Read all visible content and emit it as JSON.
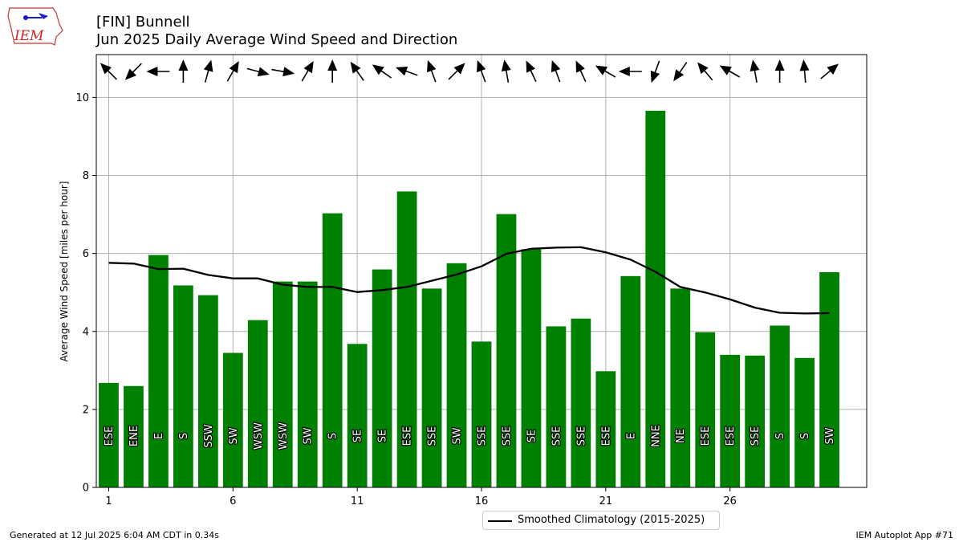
{
  "header": {
    "logo_text": "IEM",
    "title_line1": "[FIN] Bunnell",
    "title_line2": "Jun 2025 Daily Average Wind Speed and Direction"
  },
  "footer": {
    "generated": "Generated at 12 Jul 2025 6:04 AM CDT in 0.34s",
    "app": "IEM Autoplot App #71"
  },
  "legend": {
    "climatology_label": "Smoothed Climatology (2015-2025)"
  },
  "colors": {
    "bar": "#008000",
    "line": "#000000",
    "grid": "#b0b0b0"
  },
  "chart_data": {
    "type": "bar",
    "title": "[FIN] Bunnell",
    "subtitle": "Jun 2025 Daily Average Wind Speed and Direction",
    "ylabel": "Average Wind Speed [miles per hour]",
    "xlabel": "",
    "xlim": [
      0.5,
      31.5
    ],
    "ylim": [
      0,
      11.1
    ],
    "xticks": [
      1,
      6,
      11,
      16,
      21,
      26
    ],
    "yticks": [
      0,
      2,
      4,
      6,
      8,
      10
    ],
    "grid": true,
    "legend_position": "below-center",
    "days": [
      1,
      2,
      3,
      4,
      5,
      6,
      7,
      8,
      9,
      10,
      11,
      12,
      13,
      14,
      15,
      16,
      17,
      18,
      19,
      20,
      21,
      22,
      23,
      24,
      25,
      26,
      27,
      28,
      29,
      30
    ],
    "series": [
      {
        "name": "",
        "kind": "bar",
        "values": [
          2.68,
          2.6,
          5.96,
          5.18,
          4.93,
          3.45,
          4.29,
          5.28,
          5.28,
          7.03,
          3.68,
          5.59,
          7.59,
          5.1,
          5.75,
          3.74,
          7.01,
          6.11,
          4.13,
          4.33,
          2.98,
          5.42,
          9.66,
          5.1,
          3.98,
          3.4,
          3.38,
          4.15,
          3.32,
          5.52
        ],
        "direction_labels": [
          "ESE",
          "ENE",
          "E",
          "S",
          "SSW",
          "SW",
          "WSW",
          "WSW",
          "SW",
          "S",
          "SE",
          "SE",
          "ESE",
          "SSE",
          "SW",
          "SSE",
          "SSE",
          "SE",
          "SSE",
          "SSE",
          "ESE",
          "E",
          "NNE",
          "NE",
          "ESE",
          "ESE",
          "SSE",
          "S",
          "S",
          "SW"
        ],
        "arrow_angles_deg_cw_from_up": [
          -45,
          -135,
          -90,
          0,
          15,
          30,
          105,
          100,
          30,
          0,
          -35,
          -55,
          -70,
          -20,
          45,
          -20,
          -10,
          -25,
          -20,
          -25,
          -60,
          -90,
          200,
          215,
          -40,
          -60,
          -10,
          0,
          -5,
          50
        ]
      },
      {
        "name": "Smoothed Climatology (2015-2025)",
        "kind": "line",
        "values": [
          5.76,
          5.74,
          5.6,
          5.61,
          5.45,
          5.36,
          5.36,
          5.2,
          5.14,
          5.14,
          5.01,
          5.06,
          5.14,
          5.3,
          5.46,
          5.67,
          5.99,
          6.12,
          6.15,
          6.16,
          6.03,
          5.84,
          5.53,
          5.14,
          5.0,
          4.82,
          4.61,
          4.48,
          4.46,
          4.47
        ]
      }
    ]
  }
}
